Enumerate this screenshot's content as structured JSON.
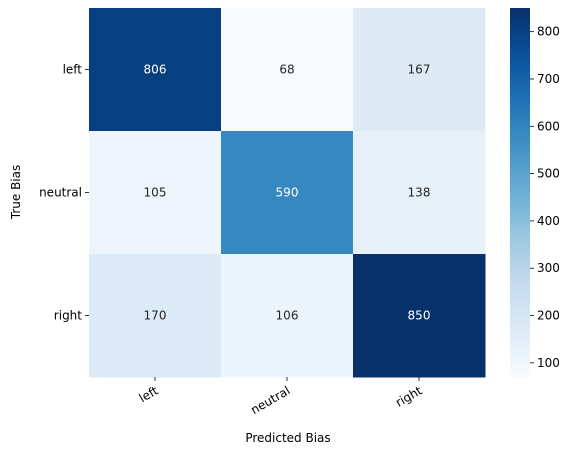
{
  "chart_data": {
    "type": "heatmap",
    "title": "",
    "xlabel": "Predicted Bias",
    "ylabel": "True Bias",
    "x_categories": [
      "left",
      "neutral",
      "right"
    ],
    "y_categories": [
      "left",
      "neutral",
      "right"
    ],
    "values": [
      [
        806,
        68,
        167
      ],
      [
        105,
        590,
        138
      ],
      [
        170,
        106,
        850
      ]
    ],
    "colormap": "Blues",
    "colorbar": {
      "range": [
        68,
        850
      ],
      "ticks": [
        100,
        200,
        300,
        400,
        500,
        600,
        700,
        800
      ]
    }
  }
}
